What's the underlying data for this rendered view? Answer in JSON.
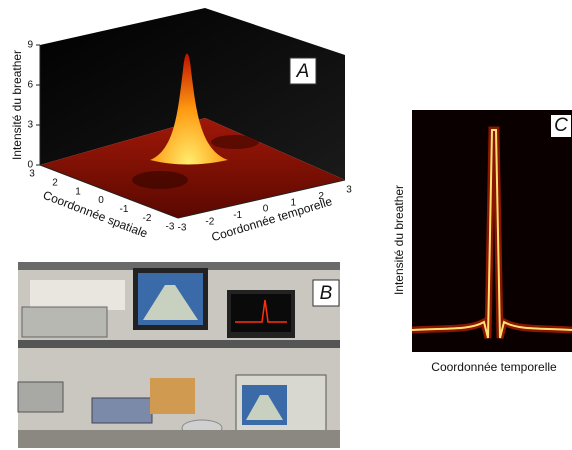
{
  "panels": [
    {
      "label": "A",
      "y_axis_label": "Intensité du breather",
      "y_ticks": [
        0,
        3,
        6,
        9
      ],
      "x_axis_label": "Coordonnée spatiale",
      "x_ticks": [
        3,
        2,
        1,
        0,
        -1,
        -2,
        -3
      ],
      "z_axis_label": "Coordonnée temporelle",
      "z_ticks": [
        -3,
        -2,
        -1,
        0,
        1,
        2,
        3
      ]
    },
    {
      "label": "B"
    },
    {
      "label": "C",
      "y_axis_label": "Intensité du breather",
      "x_axis_label": "Coordonnée temporelle"
    }
  ]
}
